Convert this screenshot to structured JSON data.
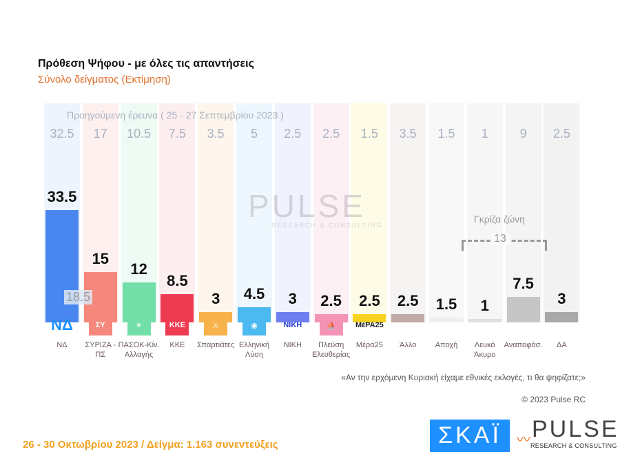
{
  "header": {
    "title": "Πρόθεση Ψήφου - με όλες τις απαντήσεις",
    "subtitle": "Σύνολο δείγματος   (Εκτίμηση)"
  },
  "chart_data": {
    "type": "bar",
    "title": "Πρόθεση Ψήφου - με όλες τις απαντήσεις",
    "categories": [
      "ΝΔ",
      "ΣΥΡΙΖΑ - ΠΣ",
      "ΠΑΣΟΚ-Κίν. Αλλαγής",
      "ΚΚΕ",
      "Σπαρτιάτες",
      "Ελληνική Λύση",
      "ΝΙΚΗ",
      "Πλεύση Ελευθερίας",
      "Μέρα25",
      "Άλλο",
      "Αποχή",
      "Λευκό Άκυρο",
      "Αναποφάσ.",
      "ΔΑ"
    ],
    "values": [
      33.5,
      15,
      12,
      8.5,
      3,
      4.5,
      3,
      2.5,
      2.5,
      2.5,
      1.5,
      1,
      7.5,
      3
    ],
    "value_labels": [
      "33.5",
      "15",
      "12",
      "8.5",
      "3",
      "4.5",
      "3",
      "2.5",
      "2.5",
      "2.5",
      "1.5",
      "1",
      "7.5",
      "3"
    ],
    "previous_title": "Προηγούμενη έρευνα  ( 25 - 27 Σεπτεμβρίου 2023 )",
    "previous_values": [
      "32.5",
      "17",
      "10.5",
      "7.5",
      "3.5",
      "5",
      "2.5",
      "2.5",
      "1.5",
      "3.5",
      "1.5",
      "1",
      "9",
      "2.5"
    ],
    "lead_difference": "18.5",
    "colors": [
      "#4a86ef",
      "#f6877c",
      "#72dea8",
      "#ee3b52",
      "#f7b24c",
      "#4cb9f0",
      "#6e80ef",
      "#f493b6",
      "#f8d31e",
      "#bfaaa6",
      "#eeeeee",
      "#dedede",
      "#c6c6c6",
      "#a9a9a9"
    ],
    "column_tints": [
      "#eef4fd",
      "#fdf0ef",
      "#eefbf4",
      "#fdeef0",
      "#fef6ec",
      "#eef7fd",
      "#f0f2fd",
      "#fdf0f5",
      "#fefbe6",
      "#f6f3f3",
      "#f8f8f8",
      "#f6f6f6",
      "#f4f4f4",
      "#f2f2f2"
    ],
    "logos": [
      "ΝΔ",
      "ΣΥ",
      "☀",
      "ΚΚΕ",
      "⚔",
      "◉",
      "ΝΙΚΗ",
      "⛵",
      "ΜέΡΑ25",
      "",
      "",
      "",
      "",
      ""
    ],
    "grey_zone": {
      "label": "Γκρίζα ζώνη",
      "value": "13"
    },
    "grid": false
  },
  "watermark": {
    "big": "PULSE",
    "small": "RESEARCH & CONSULTING"
  },
  "question": "«Αν την ερχόμενη Κυριακή είχαμε εθνικές εκλογές, τι θα ψηφίζατε;»",
  "copyright": "© 2023 Pulse RC",
  "footer": "26 - 30  Οκτωβρίου  2023  /  Δείγμα:  1.163 συνεντεύξεις",
  "logos": {
    "skai": "ΣΚΑΪ",
    "pulse": "PULSE",
    "pulse_sub": "RESEARCH & CONSULTING"
  }
}
